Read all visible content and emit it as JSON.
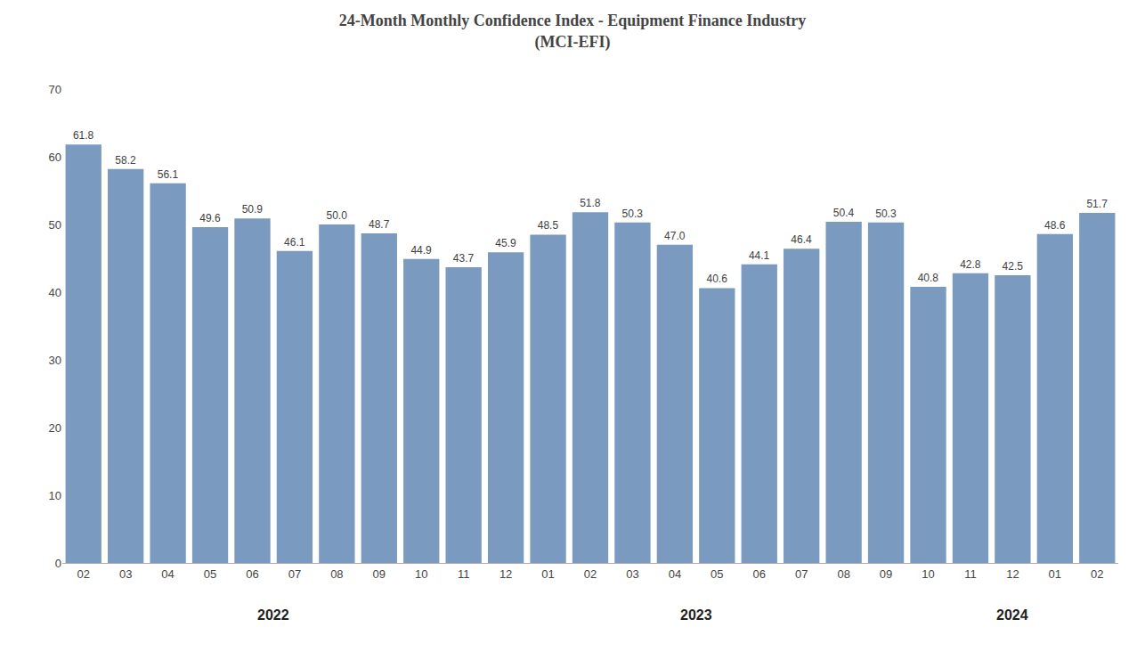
{
  "chart_data": {
    "type": "bar",
    "title": "24-Month Monthly Confidence Index - Equipment Finance Industry\n(MCI-EFI)",
    "categories": [
      "02",
      "03",
      "04",
      "05",
      "06",
      "07",
      "08",
      "09",
      "10",
      "11",
      "12",
      "01",
      "02",
      "03",
      "04",
      "05",
      "06",
      "07",
      "08",
      "09",
      "10",
      "11",
      "12",
      "01",
      "02"
    ],
    "values": [
      61.8,
      58.2,
      56.1,
      49.6,
      50.9,
      46.1,
      50.0,
      48.7,
      44.9,
      43.7,
      45.9,
      48.5,
      51.8,
      50.3,
      47.0,
      40.6,
      44.1,
      46.4,
      50.4,
      50.3,
      40.8,
      42.8,
      42.5,
      48.6,
      51.7
    ],
    "value_labels": [
      "61.8",
      "58.2",
      "56.1",
      "49.6",
      "50.9",
      "46.1",
      "50.0",
      "48.7",
      "44.9",
      "43.7",
      "45.9",
      "48.5",
      "51.8",
      "50.3",
      "47.0",
      "40.6",
      "44.1",
      "46.4",
      "50.4",
      "50.3",
      "40.8",
      "42.8",
      "42.5",
      "48.6",
      "51.7"
    ],
    "color": "#7A9BBF",
    "data_labels": true,
    "ylim": [
      0,
      70
    ],
    "yticks": [
      0,
      10,
      20,
      30,
      40,
      50,
      60,
      70
    ],
    "grid": false,
    "annotations": [
      {
        "text": "2022",
        "x": 4.5
      },
      {
        "text": "2023",
        "x": 14.5
      },
      {
        "text": "2024",
        "x": 22.0
      }
    ]
  }
}
